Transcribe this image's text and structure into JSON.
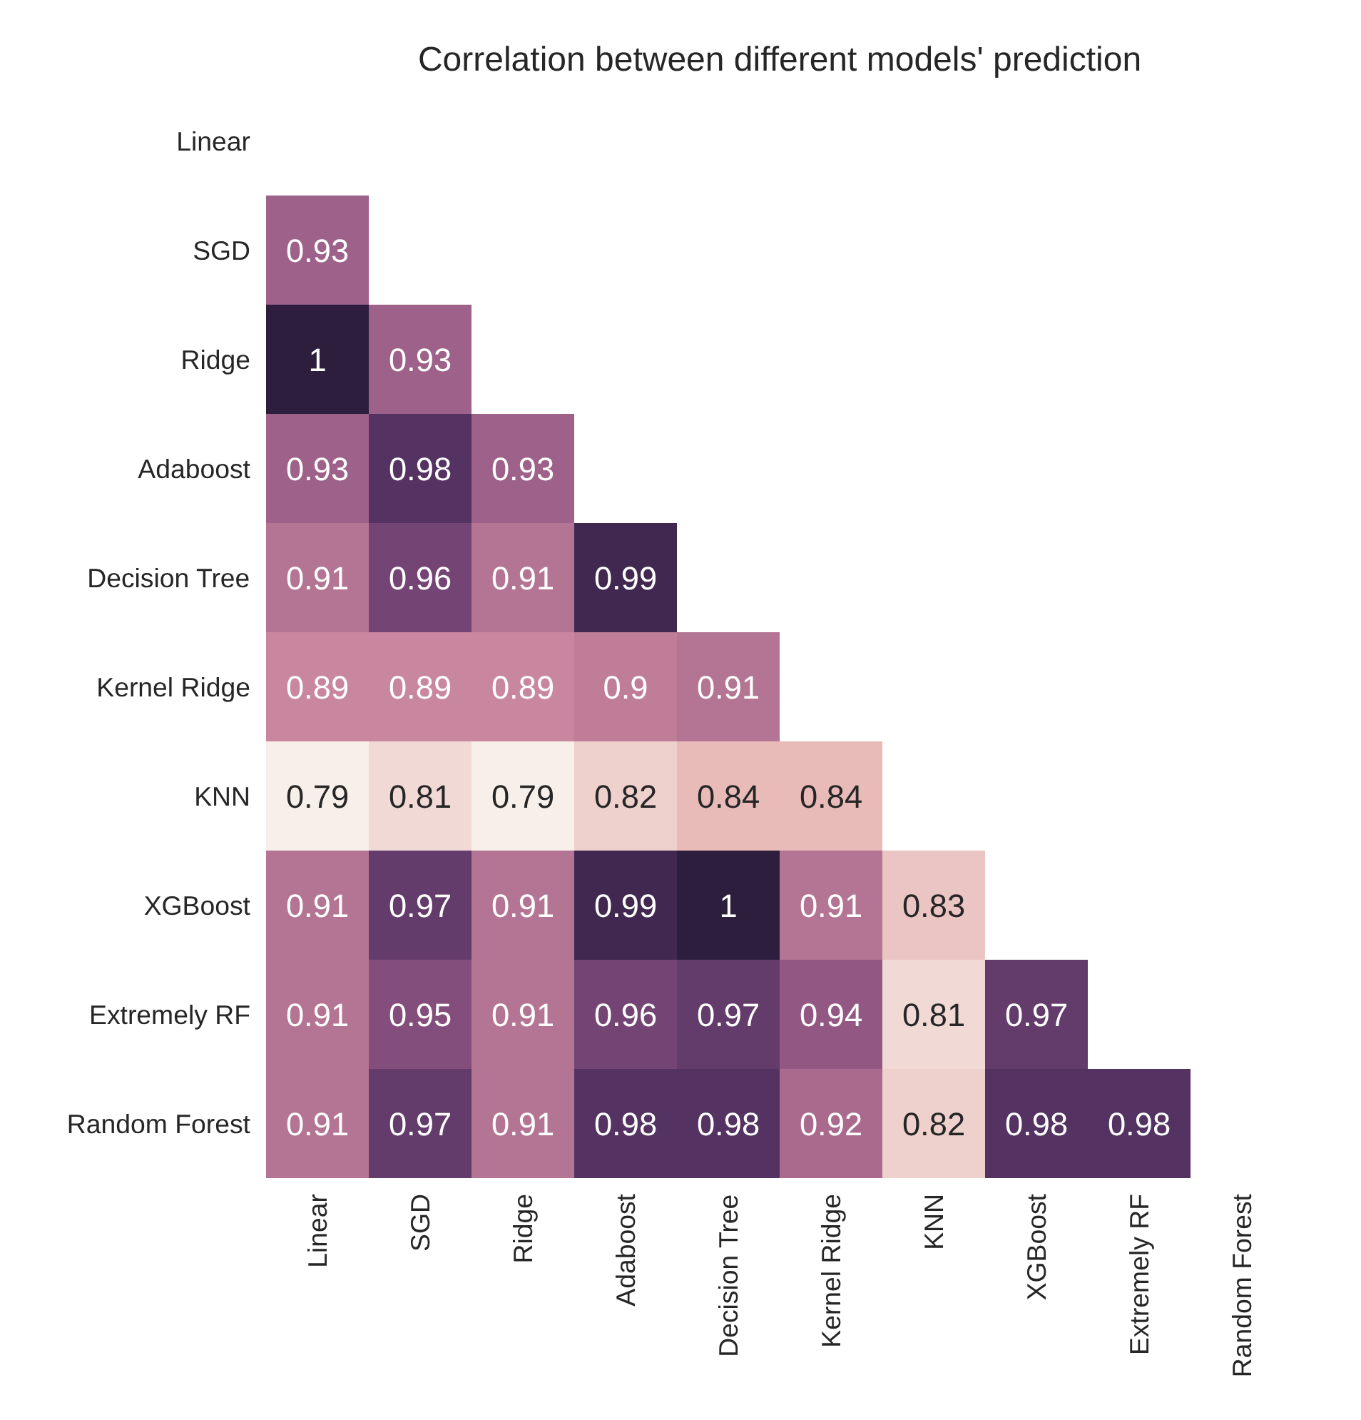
{
  "chart_data": {
    "type": "heatmap",
    "title": "Correlation between different models' prediction",
    "categories": [
      "Linear",
      "SGD",
      "Ridge",
      "Adaboost",
      "Decision Tree",
      "Kernel Ridge",
      "KNN",
      "XGBoost",
      "Extremely RF",
      "Random Forest"
    ],
    "y_categories": [
      "Linear",
      "SGD",
      "Ridge",
      "Adaboost",
      "Decision Tree",
      "Kernel Ridge",
      "KNN",
      "XGBoost",
      "Extremely RF",
      "Random Forest"
    ],
    "cells": [
      [
        null,
        null,
        null,
        null,
        null,
        null,
        null,
        null,
        null,
        null
      ],
      [
        0.93,
        null,
        null,
        null,
        null,
        null,
        null,
        null,
        null,
        null
      ],
      [
        1,
        0.93,
        null,
        null,
        null,
        null,
        null,
        null,
        null,
        null
      ],
      [
        0.93,
        0.98,
        0.93,
        null,
        null,
        null,
        null,
        null,
        null,
        null
      ],
      [
        0.91,
        0.96,
        0.91,
        0.99,
        null,
        null,
        null,
        null,
        null,
        null
      ],
      [
        0.89,
        0.89,
        0.89,
        0.9,
        0.91,
        null,
        null,
        null,
        null,
        null
      ],
      [
        0.79,
        0.81,
        0.79,
        0.82,
        0.84,
        0.84,
        null,
        null,
        null,
        null
      ],
      [
        0.91,
        0.97,
        0.91,
        0.99,
        1,
        0.91,
        0.83,
        null,
        null,
        null
      ],
      [
        0.91,
        0.95,
        0.91,
        0.96,
        0.97,
        0.94,
        0.81,
        0.97,
        null,
        null
      ],
      [
        0.91,
        0.97,
        0.91,
        0.98,
        0.98,
        0.92,
        0.82,
        0.98,
        0.98,
        null
      ]
    ],
    "data_labels": true
  }
}
